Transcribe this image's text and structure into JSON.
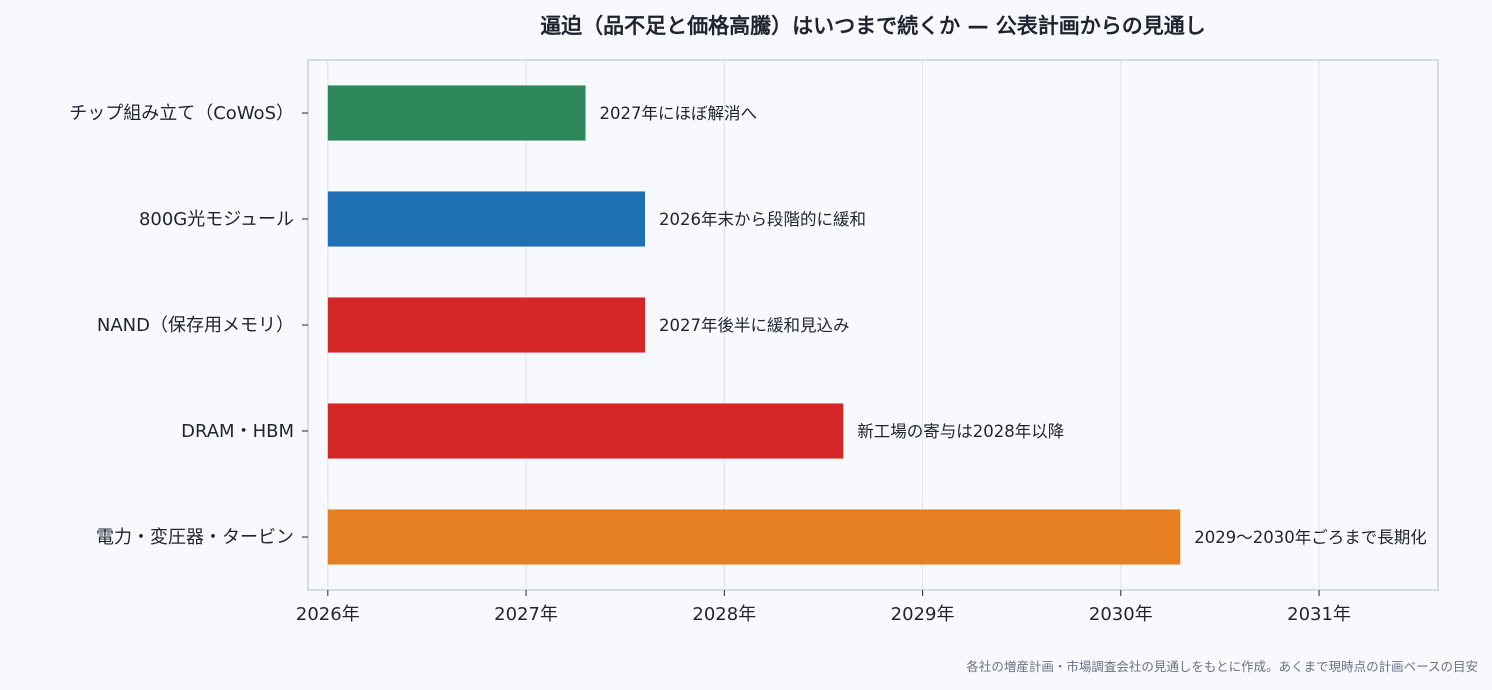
{
  "chart_data": {
    "type": "bar",
    "orientation": "horizontal",
    "title": "逼迫（品不足と価格高騰）はいつまで続くか — 公表計画からの見通し",
    "categories": [
      "チップ組み立て（CoWoS）",
      "800G光モジュール",
      "NAND（保存用メモリ）",
      "DRAM・HBM",
      "電力・変圧器・タービン"
    ],
    "values": [
      2027.3,
      2027.6,
      2027.6,
      2028.6,
      2030.3
    ],
    "bar_labels": [
      "2027年にほぼ解消へ",
      "2026年末から段階的に緩和",
      "2027年後半に緩和見込み",
      "新工場の寄与は2028年以降",
      "2029〜2030年ごろまで長期化"
    ],
    "colors": [
      "#2e875a",
      "#1f6fb4",
      "#d62728",
      "#d62728",
      "#e67e22"
    ],
    "xlim": [
      2025.9,
      2031.6
    ],
    "bar_start": 2026,
    "xticks": [
      2026,
      2027,
      2028,
      2029,
      2030,
      2031
    ],
    "xtick_labels": [
      "2026年",
      "2027年",
      "2028年",
      "2029年",
      "2030年",
      "2031年"
    ],
    "grid": "vertical",
    "xlabel": "",
    "ylabel": ""
  },
  "note": "各社の増産計画・市場調査会社の見通しをもとに作成。あくまで現時点の計画ベースの目安"
}
